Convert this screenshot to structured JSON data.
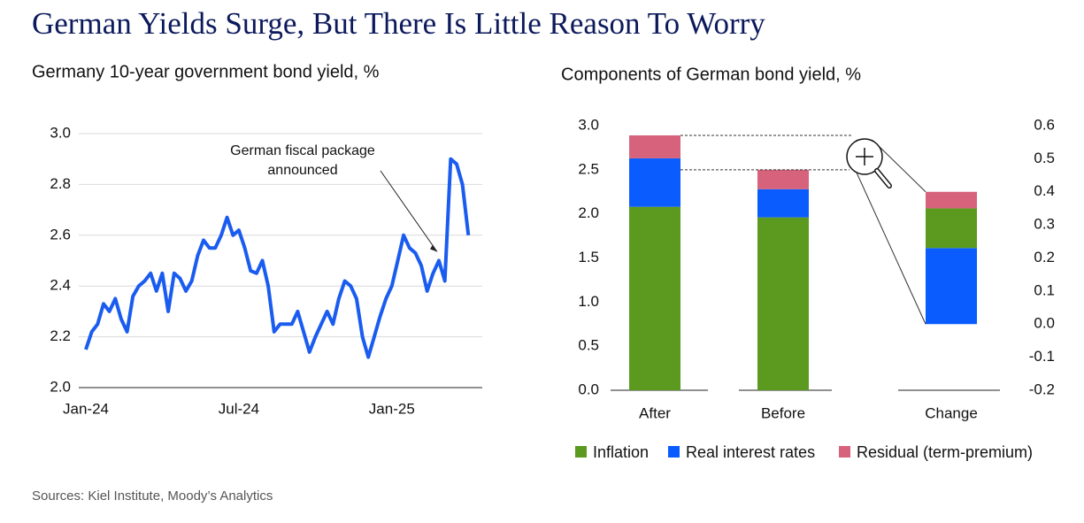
{
  "title": "German Yields Surge, But There Is Little Reason To Worry",
  "source": "Sources: Kiel Institute, Moody’s Analytics",
  "chart_data": [
    {
      "type": "line",
      "title": "Germany 10-year government bond yield, %",
      "categories": [
        "Jan-24",
        null,
        null,
        null,
        null,
        null,
        null,
        null,
        null,
        null,
        null,
        null,
        null,
        null,
        null,
        null,
        null,
        null,
        null,
        null,
        null,
        null,
        null,
        null,
        null,
        null,
        "Jul-24",
        null,
        null,
        null,
        null,
        null,
        null,
        null,
        null,
        null,
        null,
        null,
        null,
        null,
        null,
        null,
        null,
        null,
        null,
        null,
        null,
        null,
        null,
        null,
        null,
        null,
        "Jan-25",
        null,
        null,
        null,
        null,
        null,
        null,
        null,
        null,
        null,
        null,
        null,
        null,
        null
      ],
      "series": [
        {
          "name": "Germany 10-year government bond yield",
          "color": "#1a5cf0",
          "values": [
            2.15,
            2.22,
            2.25,
            2.33,
            2.3,
            2.35,
            2.27,
            2.22,
            2.36,
            2.4,
            2.42,
            2.45,
            2.38,
            2.45,
            2.3,
            2.45,
            2.43,
            2.38,
            2.42,
            2.52,
            2.58,
            2.55,
            2.55,
            2.6,
            2.67,
            2.6,
            2.62,
            2.55,
            2.46,
            2.45,
            2.5,
            2.4,
            2.22,
            2.25,
            2.25,
            2.25,
            2.3,
            2.22,
            2.14,
            2.2,
            2.25,
            2.3,
            2.25,
            2.35,
            2.42,
            2.4,
            2.35,
            2.2,
            2.12,
            2.2,
            2.28,
            2.35,
            2.4,
            2.5,
            2.6,
            2.55,
            2.53,
            2.48,
            2.38,
            2.45,
            2.5,
            2.42,
            2.9,
            2.88,
            2.8,
            2.6
          ]
        }
      ],
      "ylim": [
        2.0,
        3.0
      ],
      "yticks": [
        {
          "value": 2.0,
          "label": "2.0"
        },
        2.2,
        2.4,
        2.6,
        2.8,
        {
          "value": 3.0,
          "label": "3.0"
        }
      ],
      "grid": true,
      "annotation": {
        "lines": [
          "German fiscal package",
          "announced"
        ],
        "index": 60
      }
    },
    {
      "type": "stacked_bar",
      "title": "Components of German bond yield, %",
      "categories": [
        "After",
        "Before",
        "Change"
      ],
      "axis_by_category": [
        "y",
        "y",
        "y2"
      ],
      "series": [
        {
          "name": "Inflation",
          "color": "#5b9a1f",
          "values": [
            2.08,
            1.96,
            0.12
          ]
        },
        {
          "name": "Real interest rates",
          "color": "#0a5cff",
          "values": [
            0.55,
            0.32,
            0.23
          ]
        },
        {
          "name": "Residual (term-premium)",
          "color": "#d6627b",
          "values": [
            0.26,
            0.22,
            0.05
          ]
        }
      ],
      "stack_order": [
        1,
        0,
        2
      ],
      "category_stack_order": [
        [
          0,
          1,
          2
        ],
        [
          0,
          1,
          2
        ],
        [
          1,
          0,
          2
        ]
      ],
      "ylim": [
        0,
        3.0
      ],
      "yticks": [
        {
          "value": 0,
          "label": "0.0"
        },
        0.5,
        {
          "value": 1,
          "label": "1.0"
        },
        1.5,
        {
          "value": 2,
          "label": "2.0"
        },
        2.5,
        {
          "value": 3,
          "label": "3.0"
        }
      ],
      "y2lim": [
        -0.2,
        0.6
      ],
      "y2ticks": [
        -0.2,
        -0.1,
        {
          "value": 0,
          "label": "0.0"
        },
        0.1,
        0.2,
        0.3,
        0.4,
        0.5,
        0.6
      ],
      "legend": "bottom"
    }
  ]
}
